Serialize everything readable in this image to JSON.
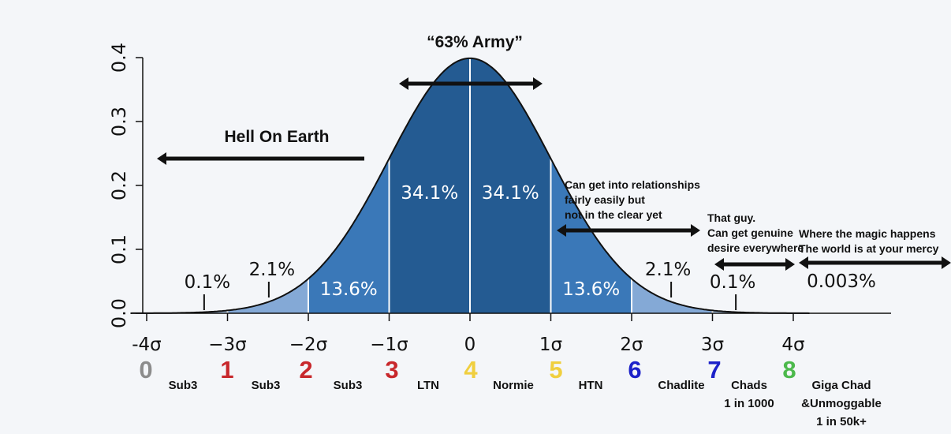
{
  "chart_data": {
    "type": "area",
    "title": "",
    "xlabel": "",
    "ylabel": "",
    "xlim": [
      -4.2,
      5.3
    ],
    "ylim": [
      0,
      0.4
    ],
    "y_ticks": [
      "0.0",
      "0.1",
      "0.2",
      "0.3",
      "0.4"
    ],
    "x_ticks": [
      {
        "value": -4,
        "label": "-4σ"
      },
      {
        "value": -3,
        "label": "−3σ"
      },
      {
        "value": -2,
        "label": "−2σ"
      },
      {
        "value": -1,
        "label": "−1σ"
      },
      {
        "value": 0,
        "label": "0"
      },
      {
        "value": 1,
        "label": "1σ"
      },
      {
        "value": 2,
        "label": "2σ"
      },
      {
        "value": 3,
        "label": "3σ"
      },
      {
        "value": 4,
        "label": "4σ"
      }
    ],
    "curve": "standard normal density",
    "bands": [
      {
        "from": -4,
        "to": -3,
        "label": "0.1%",
        "color": "#a9c3e1"
      },
      {
        "from": -3,
        "to": -2,
        "label": "2.1%",
        "color": "#84a9d6"
      },
      {
        "from": -2,
        "to": -1,
        "label": "13.6%",
        "color": "#3a78b8"
      },
      {
        "from": -1,
        "to": 0,
        "label": "34.1%",
        "color": "#245b92"
      },
      {
        "from": 0,
        "to": 1,
        "label": "34.1%",
        "color": "#245b92"
      },
      {
        "from": 1,
        "to": 2,
        "label": "13.6%",
        "color": "#3a78b8"
      },
      {
        "from": 2,
        "to": 3,
        "label": "2.1%",
        "color": "#84a9d6"
      },
      {
        "from": 3,
        "to": 4,
        "label": "0.1%",
        "color": "#a9c3e1"
      }
    ],
    "extra_label": "0.003%",
    "annotations": {
      "army": "“63% Army”",
      "hell": "Hell On Earth",
      "relationships": [
        "Can get into relationships",
        "fairly easily but",
        "not in the clear yet"
      ],
      "that_guy": [
        "That guy.",
        "Can get genuine",
        "desire everywhere"
      ],
      "magic": [
        "Where the magic happens",
        "The world is at your mercy"
      ]
    },
    "ranks": [
      {
        "label": "0",
        "color": "#8c8c8c"
      },
      {
        "label": "1",
        "color": "#c8282c"
      },
      {
        "label": "2",
        "color": "#c8282c"
      },
      {
        "label": "3",
        "color": "#c8282c"
      },
      {
        "label": "4",
        "color": "#f0cf3f"
      },
      {
        "label": "5",
        "color": "#f0cf3f"
      },
      {
        "label": "6",
        "color": "#1d22c9"
      },
      {
        "label": "7",
        "color": "#1d22c9"
      },
      {
        "label": "8",
        "color": "#4cb94c"
      }
    ],
    "categories": [
      {
        "lines": [
          "Sub3"
        ]
      },
      {
        "lines": [
          "Sub3"
        ]
      },
      {
        "lines": [
          "Sub3"
        ]
      },
      {
        "lines": [
          "LTN"
        ]
      },
      {
        "lines": [
          "Normie"
        ]
      },
      {
        "lines": [
          "HTN"
        ]
      },
      {
        "lines": [
          "Chadlite"
        ]
      },
      {
        "lines": [
          "Chads",
          "1 in 1000"
        ]
      },
      {
        "lines": [
          "Giga Chad",
          "&Unmoggable",
          "1 in 50k+"
        ]
      }
    ]
  }
}
